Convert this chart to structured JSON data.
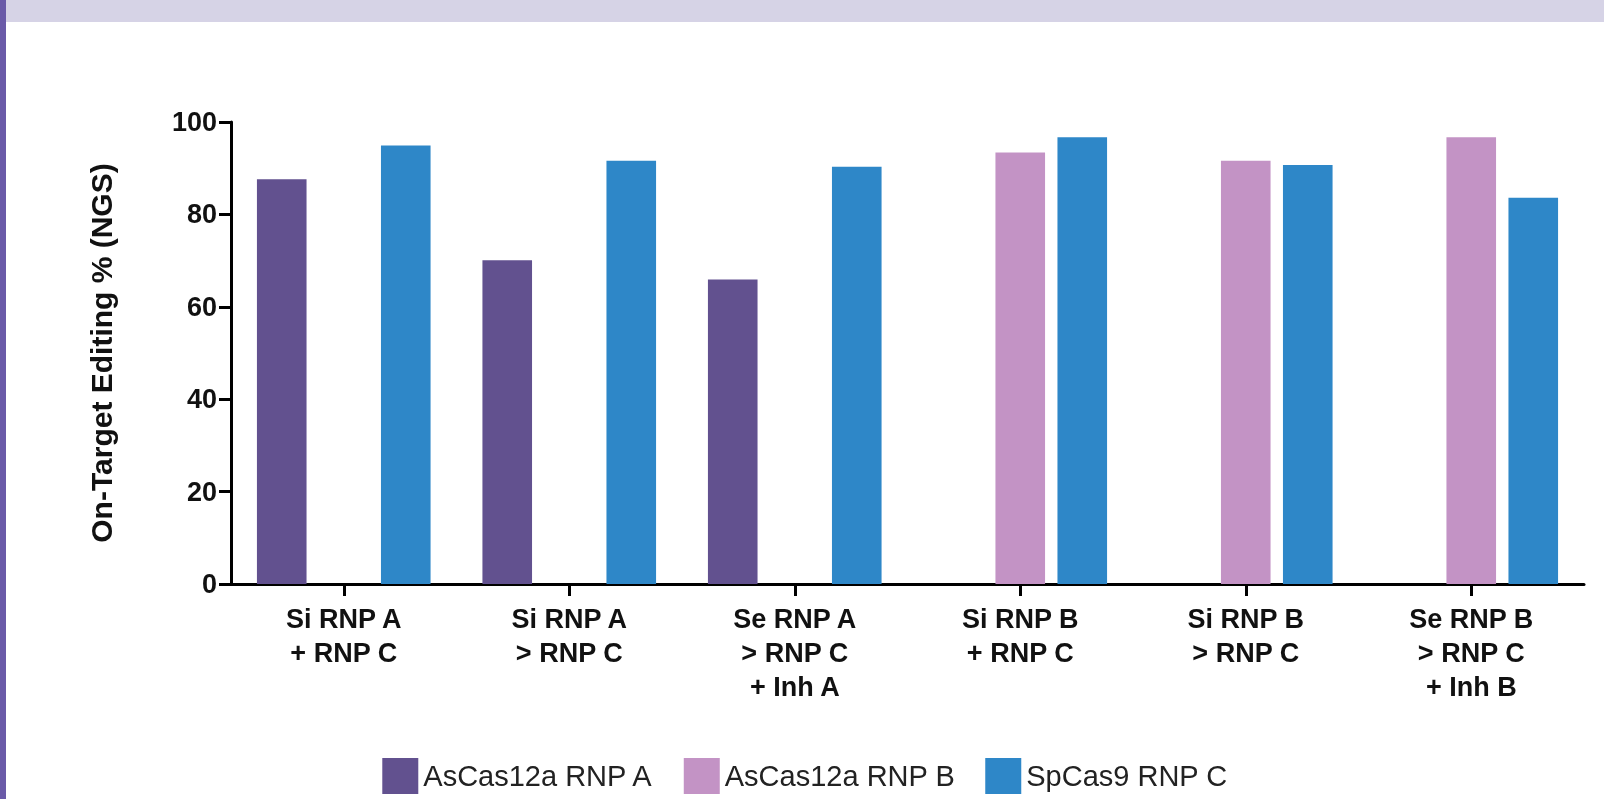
{
  "chart_data": {
    "type": "bar",
    "ylabel": "On-Target Editing % (NGS)",
    "categories": [
      "Si RNP A\n+ RNP C",
      "Si RNP A\n> RNP C",
      "Se RNP A\n> RNP C\n+ Inh A",
      "Si RNP B\n+ RNP C",
      "Si RNP B\n> RNP C",
      "Se RNP B\n> RNP C\n+ Inh B"
    ],
    "series": [
      {
        "name": "AsCas12a RNP A",
        "color": "#62518f",
        "values": [
          87.6,
          70.1,
          65.9,
          null,
          null,
          null
        ]
      },
      {
        "name": "AsCas12a RNP B",
        "color": "#c393c5",
        "values": [
          null,
          null,
          null,
          93.4,
          91.6,
          96.7
        ]
      },
      {
        "name": "SpCas9 RNP C",
        "color": "#2e87c8",
        "values": [
          94.9,
          91.6,
          90.3,
          96.7,
          90.7,
          83.6
        ]
      }
    ],
    "ylim": [
      0,
      100
    ],
    "yticks": [
      0,
      20,
      40,
      60,
      80,
      100
    ],
    "grid": false,
    "legend": "bottom"
  }
}
